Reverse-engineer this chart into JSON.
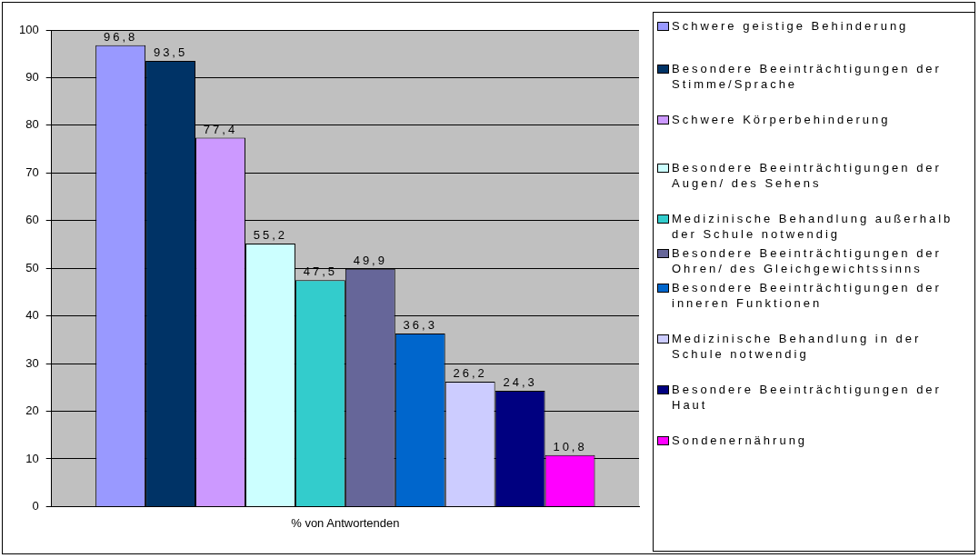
{
  "chart_data": {
    "type": "bar",
    "categories": [
      "% von Antwortenden"
    ],
    "series": [
      {
        "name": "Schwere geistige Behinderung",
        "color": "#9999ff",
        "values": [
          96.8
        ],
        "value_labels": [
          "96,8"
        ]
      },
      {
        "name": "Besondere Beeinträchtigungen der Stimme/Sprache",
        "color": "#003366",
        "values": [
          93.5
        ],
        "value_labels": [
          "93,5"
        ]
      },
      {
        "name": "Schwere Körperbehinderung",
        "color": "#cc99ff",
        "values": [
          77.4
        ],
        "value_labels": [
          "77,4"
        ]
      },
      {
        "name": "Besondere Beeinträchtigungen der Augen/ des Sehens",
        "color": "#ccffff",
        "values": [
          55.2
        ],
        "value_labels": [
          "55,2"
        ]
      },
      {
        "name": "Medizinische Behandlung außerhalb der Schule notwendig",
        "color": "#33cccc",
        "values": [
          47.5
        ],
        "value_labels": [
          "47,5"
        ]
      },
      {
        "name": "Besondere Beeinträchtigungen der Ohren/ des Gleichgewichtssinns",
        "color": "#666699",
        "values": [
          49.9
        ],
        "value_labels": [
          "49,9"
        ]
      },
      {
        "name": "Besondere Beeinträchtigungen der inneren Funktionen",
        "color": "#0066cc",
        "values": [
          36.3
        ],
        "value_labels": [
          "36,3"
        ]
      },
      {
        "name": "Medizinische Behandlung in der Schule notwendig",
        "color": "#ccccff",
        "values": [
          26.2
        ],
        "value_labels": [
          "26,2"
        ]
      },
      {
        "name": "Besondere Beeinträchtigungen der Haut",
        "color": "#000080",
        "values": [
          24.3
        ],
        "value_labels": [
          "24,3"
        ]
      },
      {
        "name": "Sondenernährung",
        "color": "#ff00ff",
        "values": [
          10.8
        ],
        "value_labels": [
          "10,8"
        ]
      }
    ],
    "ylim": [
      0,
      100
    ],
    "yticks": [
      0,
      10,
      20,
      30,
      40,
      50,
      60,
      70,
      80,
      90,
      100
    ],
    "grid": "y",
    "legend": "right"
  }
}
